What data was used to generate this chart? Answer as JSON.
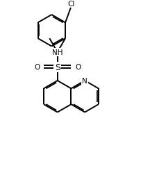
{
  "bg_color": "#ffffff",
  "line_color": "#000000",
  "text_color": "#000000",
  "lw": 1.4,
  "fs": 7.5,
  "figsize": [
    2.16,
    2.53
  ],
  "dpi": 100,
  "xlim": [
    0.0,
    6.5
  ],
  "ylim": [
    0.0,
    8.0
  ]
}
